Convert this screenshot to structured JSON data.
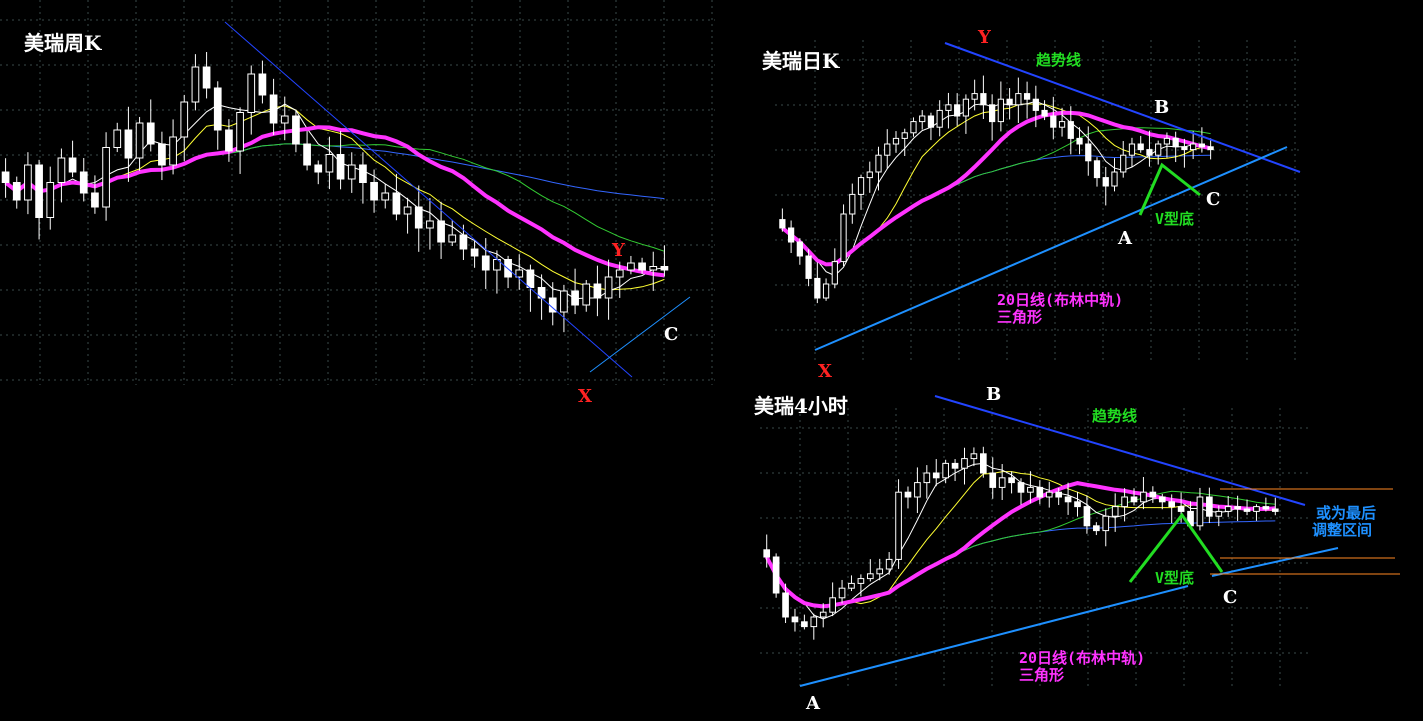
{
  "colors": {
    "background": "#000000",
    "candle": "#ffffff",
    "ma20": "#ff33ff",
    "ma5": "#ffffff",
    "ma10": "#ffff33",
    "ma30": "#33cc33",
    "ma60": "#3366ff",
    "trendline": "#2244ff",
    "support": "#1e90ff",
    "v_bottom": "#22dd22",
    "range": "#ff8822"
  },
  "chart_data": [
    {
      "type": "candlestick",
      "title": "美瑞周K",
      "ylim": [
        0,
        100
      ],
      "closes": [
        55,
        50,
        60,
        45,
        55,
        62,
        58,
        52,
        48,
        65,
        70,
        62,
        72,
        66,
        60,
        68,
        78,
        88,
        82,
        70,
        64,
        75,
        86,
        80,
        72,
        74,
        66,
        60,
        58,
        63,
        56,
        60,
        55,
        50,
        52,
        46,
        48,
        42,
        44,
        38,
        40,
        36,
        34,
        30,
        33,
        28,
        30,
        25,
        22,
        18,
        24,
        20,
        26,
        22,
        28,
        30,
        32,
        30,
        31,
        30
      ],
      "annotations": {
        "x": "X",
        "y": "Y",
        "c": "C"
      }
    },
    {
      "type": "candlestick",
      "title": "美瑞日K",
      "ylim": [
        0,
        100
      ],
      "closes": [
        40,
        35,
        30,
        22,
        15,
        20,
        28,
        45,
        52,
        58,
        60,
        66,
        70,
        72,
        74,
        78,
        80,
        76,
        82,
        84,
        80,
        86,
        88,
        84,
        78,
        86,
        84,
        88,
        86,
        82,
        80,
        76,
        78,
        72,
        70,
        64,
        58,
        55,
        60,
        66,
        70,
        68,
        66,
        70,
        72,
        69,
        68,
        70,
        69,
        68
      ],
      "annotations": {
        "trend": "趋势线",
        "y": "Y",
        "b": "B",
        "a": "A",
        "c": "C",
        "x": "X",
        "v": "V型底",
        "ma20": "20日线(布林中轨)",
        "triangle": "三角形"
      }
    },
    {
      "type": "candlestick",
      "title": "美瑞4小时",
      "ylim": [
        0,
        100
      ],
      "closes": [
        45,
        30,
        20,
        18,
        16,
        20,
        22,
        28,
        32,
        34,
        36,
        38,
        40,
        44,
        72,
        70,
        76,
        80,
        78,
        84,
        82,
        86,
        88,
        80,
        74,
        78,
        76,
        72,
        74,
        70,
        72,
        70,
        68,
        66,
        58,
        56,
        62,
        66,
        70,
        68,
        72,
        70,
        68,
        66,
        64,
        58,
        70,
        62,
        64,
        66,
        65,
        64,
        66,
        65,
        64
      ],
      "annotations": {
        "b": "B",
        "trend": "趋势线",
        "v": "V型底",
        "c": "C",
        "a": "A",
        "ma20": "20日线(布林中轨)",
        "triangle": "三角形",
        "range_note_1": "或为最后",
        "range_note_2": "调整区间"
      }
    }
  ]
}
